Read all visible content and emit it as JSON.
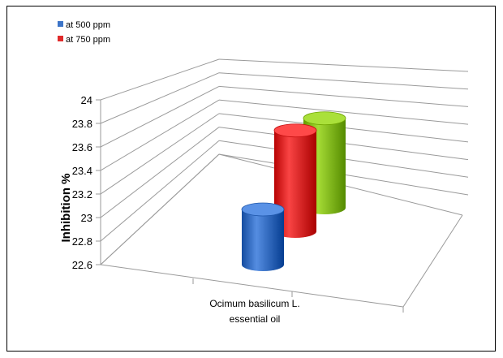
{
  "chart_data": {
    "type": "bar",
    "title": "",
    "xlabel": "",
    "ylabel": "Inhibition %",
    "ylim": [
      22.6,
      24
    ],
    "yticks": [
      "22.6",
      "22.8",
      "23",
      "23.2",
      "23.4",
      "23.6",
      "23.8",
      "24"
    ],
    "categories": [
      "Ocimum basilicum  L. essential oil"
    ],
    "category_lines": [
      "Ocimum basilicum  L.",
      "essential  oil"
    ],
    "legend_position": "top-left",
    "grid": true,
    "series": [
      {
        "name": "at 500 ppm",
        "values": [
          23.0
        ],
        "color": "#3c74c8"
      },
      {
        "name": "at 750 ppm",
        "values": [
          23.6
        ],
        "color": "#e02b2b"
      },
      {
        "name": "",
        "values": [
          23.8
        ],
        "color": "#8cc21c"
      }
    ]
  }
}
